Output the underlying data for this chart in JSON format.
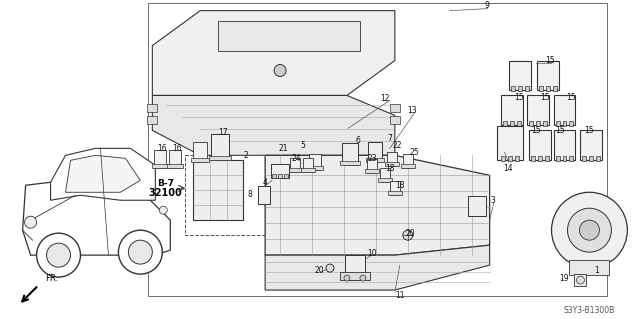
{
  "title": "",
  "bg_color": "#ffffff",
  "diagram_code": "S3Y3-B1300B",
  "fig_width": 6.4,
  "fig_height": 3.19,
  "dpi": 100,
  "line_color": "#333333",
  "text_color": "#111111",
  "label_fontsize": 5.5
}
